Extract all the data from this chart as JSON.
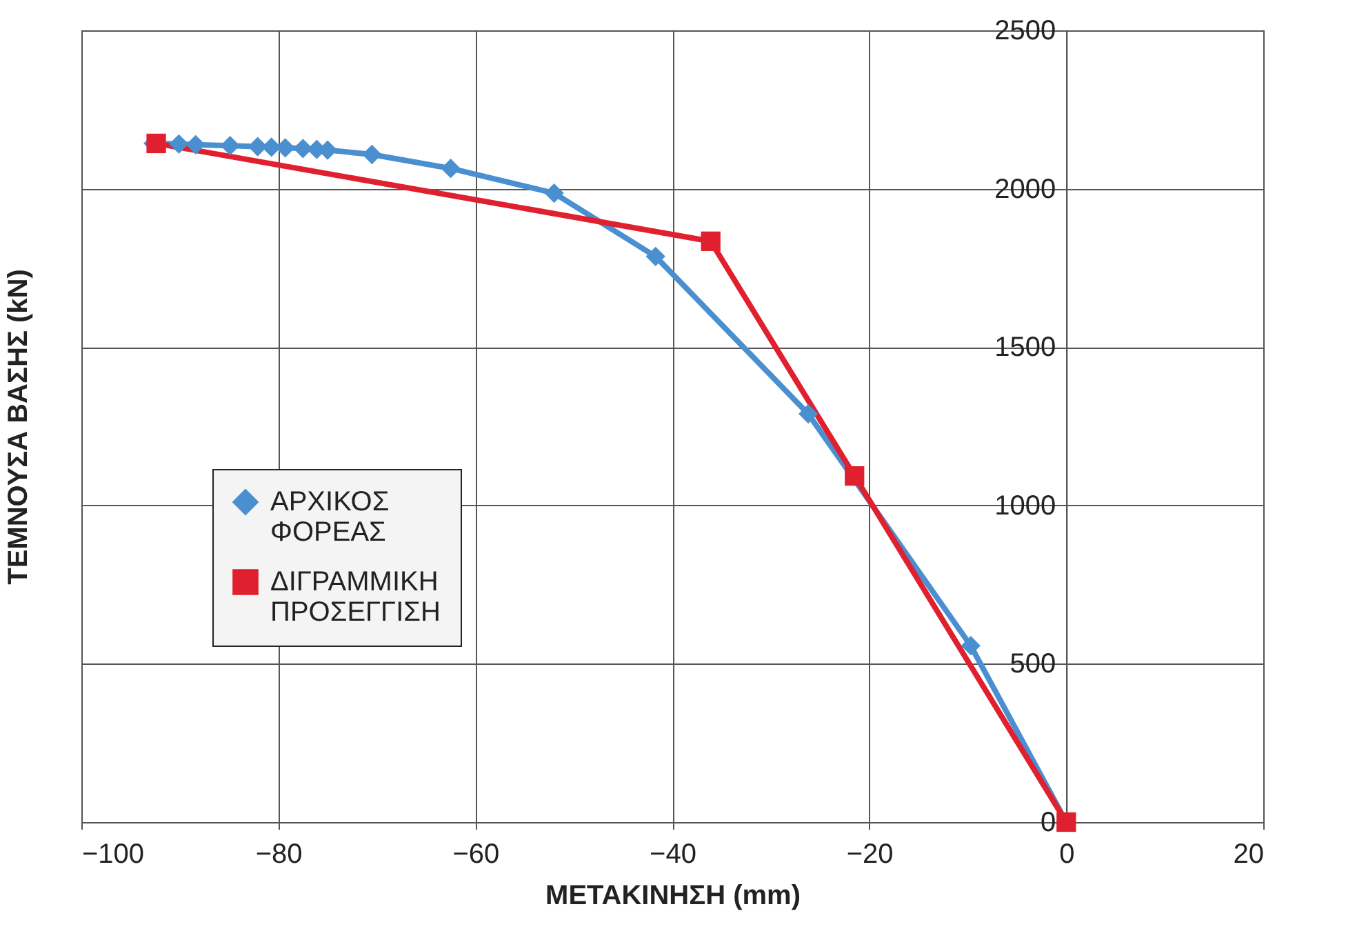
{
  "chart_data": {
    "type": "line",
    "xlabel": "ΜΕΤΑΚΙΝΗΣΗ (mm)",
    "ylabel": "ΤΕΜΝΟΥΣΑ ΒΑΣΗΣ (kN)",
    "xlim": [
      -100,
      20
    ],
    "xticks": [
      -100,
      -80,
      -60,
      -40,
      -20,
      0,
      20
    ],
    "ylim": [
      0,
      2500
    ],
    "yticks": [
      0,
      500,
      1000,
      1500,
      2000,
      2500
    ],
    "grid": true,
    "legend": "left",
    "line_style": "solid",
    "series": [
      {
        "name": "ΑΡΧΙΚΟΣ ΦΟΡΕΑΣ",
        "color": "#4a8fd0",
        "marker": "diamond",
        "x": [
          0,
          -9.7,
          -26.2,
          -41.7,
          -52.0,
          -62.5,
          -70.5,
          -75.0,
          -76.1,
          -77.5,
          -79.3,
          -80.7,
          -82.1,
          -84.9,
          -88.4,
          -90.1,
          -92.7
        ],
        "values": [
          0,
          557,
          1289,
          1786,
          1986,
          2064,
          2108,
          2122,
          2124,
          2127,
          2129,
          2131,
          2133,
          2136,
          2139,
          2141,
          2143
        ]
      },
      {
        "name": "ΔΙΓΡΑΜΜΙΚΗ ΠΡΟΣΕΓΓΙΣΗ",
        "color": "#e0202e",
        "marker": "square",
        "x": [
          0,
          -21.5,
          -36.1,
          -92.4
        ],
        "values": [
          0,
          1093,
          1834,
          2143
        ]
      }
    ]
  }
}
